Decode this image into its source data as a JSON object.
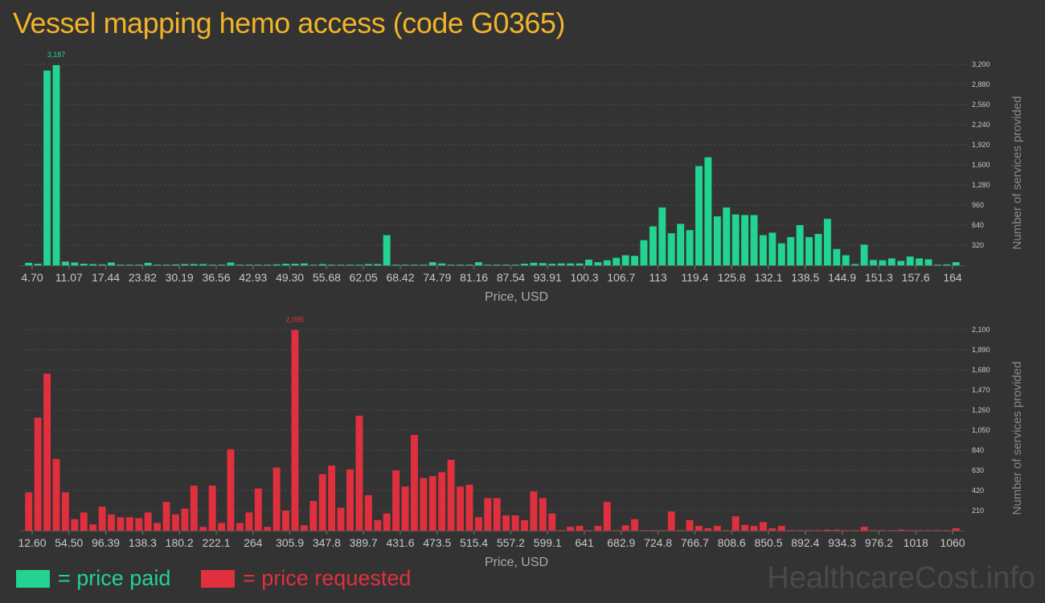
{
  "title": "Vessel mapping hemo access (code G0365)",
  "watermark": "HealthcareCost.info",
  "colors": {
    "paid": "#22d391",
    "requested": "#e0303e",
    "title": "#f0b429"
  },
  "legend": {
    "paid": "= price paid",
    "requested": "= price requested"
  },
  "chart_data": [
    {
      "type": "bar",
      "title": "",
      "xlabel": "Price, USD",
      "ylabel": "Number of services provided",
      "ylim": [
        0,
        3200
      ],
      "yticks": [
        "320",
        "640",
        "960",
        "1,280",
        "1,600",
        "1,920",
        "2,240",
        "2,560",
        "2,880",
        "3,200"
      ],
      "xtick_labels": [
        "4.70",
        "11.07",
        "17.44",
        "23.82",
        "30.19",
        "36.56",
        "42.93",
        "49.30",
        "55.68",
        "62.05",
        "68.42",
        "74.79",
        "81.16",
        "87.54",
        "93.91",
        "100.3",
        "106.7",
        "113",
        "119.4",
        "125.8",
        "132.1",
        "138.5",
        "144.9",
        "151.3",
        "157.6",
        "164"
      ],
      "peak_label": "3,187",
      "peak_index": 3,
      "grid": true,
      "color": "#22d391",
      "values": [
        40,
        25,
        3100,
        3187,
        60,
        45,
        25,
        20,
        15,
        45,
        10,
        10,
        10,
        40,
        10,
        10,
        15,
        20,
        20,
        20,
        10,
        10,
        45,
        10,
        10,
        10,
        10,
        15,
        25,
        25,
        30,
        10,
        20,
        10,
        10,
        10,
        10,
        20,
        20,
        480,
        10,
        10,
        10,
        10,
        50,
        30,
        10,
        10,
        10,
        50,
        10,
        10,
        10,
        10,
        25,
        40,
        35,
        25,
        30,
        30,
        30,
        90,
        50,
        80,
        120,
        160,
        150,
        400,
        620,
        920,
        510,
        660,
        560,
        1580,
        1720,
        780,
        920,
        810,
        800,
        800,
        480,
        520,
        350,
        450,
        640,
        450,
        500,
        740,
        260,
        160,
        20,
        330,
        85,
        80,
        110,
        70,
        140,
        110,
        95,
        10,
        15,
        50
      ]
    },
    {
      "type": "bar",
      "title": "",
      "xlabel": "Price, USD",
      "ylabel": "Number of services provided",
      "ylim": [
        0,
        2100
      ],
      "yticks": [
        "210",
        "420",
        "630",
        "840",
        "1,050",
        "1,260",
        "1,470",
        "1,680",
        "1,890",
        "2,100"
      ],
      "xtick_labels": [
        "12.60",
        "54.50",
        "96.39",
        "138.3",
        "180.2",
        "222.1",
        "264",
        "305.9",
        "347.8",
        "389.7",
        "431.6",
        "473.5",
        "515.4",
        "557.2",
        "599.1",
        "641",
        "682.9",
        "724.8",
        "766.7",
        "808.6",
        "850.5",
        "892.4",
        "934.3",
        "976.2",
        "1018",
        "1060"
      ],
      "peak_label": "2,095",
      "peak_index": 29,
      "grid": true,
      "color": "#e0303e",
      "values": [
        400,
        1180,
        1640,
        750,
        400,
        120,
        190,
        65,
        250,
        170,
        140,
        140,
        130,
        190,
        80,
        300,
        170,
        230,
        470,
        40,
        470,
        80,
        850,
        80,
        190,
        440,
        40,
        660,
        210,
        2095,
        55,
        310,
        590,
        680,
        240,
        640,
        1200,
        370,
        110,
        180,
        630,
        460,
        1000,
        550,
        570,
        610,
        740,
        460,
        480,
        140,
        340,
        340,
        160,
        160,
        110,
        410,
        340,
        180,
        5,
        40,
        50,
        5,
        50,
        300,
        5,
        55,
        120,
        5,
        5,
        5,
        200,
        5,
        110,
        50,
        25,
        50,
        5,
        150,
        60,
        50,
        90,
        25,
        50,
        5,
        5,
        5,
        5,
        10,
        10,
        5,
        5,
        40,
        5,
        5,
        5,
        10,
        5,
        5,
        5,
        5,
        5,
        25
      ]
    }
  ]
}
